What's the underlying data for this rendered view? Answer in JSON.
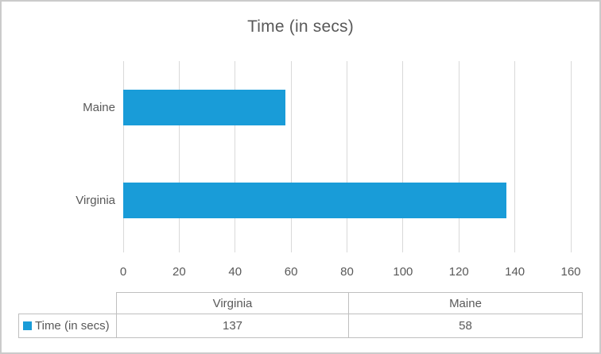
{
  "chart_data": {
    "type": "bar",
    "orientation": "horizontal",
    "title": "Time (in secs)",
    "categories": [
      "Virginia",
      "Maine"
    ],
    "series": [
      {
        "name": "Time (in secs)",
        "values": [
          137,
          58
        ]
      }
    ],
    "xlabel": "",
    "ylabel": "",
    "xlim": [
      0,
      160
    ],
    "ticks": [
      0,
      20,
      40,
      60,
      80,
      100,
      120,
      140,
      160
    ],
    "grid": true,
    "legend_position": "bottom-data-table",
    "category_display_order_top_to_bottom": [
      "Maine",
      "Virginia"
    ]
  },
  "data_table": {
    "corner_label": "",
    "columns": [
      "Virginia",
      "Maine"
    ],
    "row_label": "Time (in secs)",
    "row_values": [
      "137",
      "58"
    ]
  },
  "style": {
    "bar_color": "#199cd8",
    "legend_swatch_color": "#199cd8",
    "gridline_color": "#d9d9d9",
    "text_color": "#595959",
    "frame_border_color": "#cbcbcb",
    "table_border_color": "#bfbfbf"
  }
}
